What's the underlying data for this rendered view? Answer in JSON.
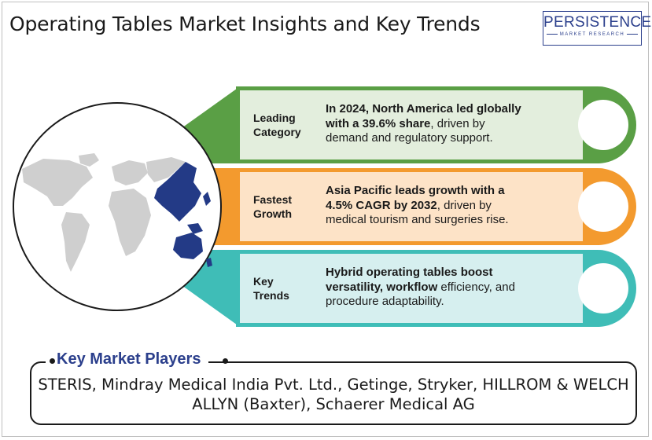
{
  "header": {
    "title": "Operating Tables Market Insights and Key Trends",
    "logo_main": "PERSISTENCE",
    "logo_sub": "MARKET RESEARCH"
  },
  "cards": [
    {
      "label_line1": "Leading",
      "label_line2": "Category",
      "color": "#5a9f45",
      "light": "#e3eedd",
      "text_bold1": "In 2024, North America led globally",
      "text_bold2": "with a 39.6% share",
      "text_rest2": ", driven by",
      "text_line3": "demand and regulatory support."
    },
    {
      "label_line1": "Fastest",
      "label_line2": "Growth",
      "color": "#f39a2e",
      "light": "#fde3c7",
      "text_bold1": "Asia Pacific leads growth with a",
      "text_bold2": "4.5% CAGR by 2032",
      "text_rest2": ", driven by",
      "text_line3": "medical tourism and surgeries rise."
    },
    {
      "label_line1": "Key",
      "label_line2": "Trends",
      "color": "#3fbdb7",
      "light": "#d6efef",
      "text_bold1": "Hybrid operating tables boost",
      "text_bold2": "versatility, workflow",
      "text_rest2": " efficiency, and",
      "text_line3": "procedure adaptability."
    }
  ],
  "players": {
    "title": "Key Market Players",
    "text": "STERIS, Mindray Medical India Pvt. Ltd., Getinge, Stryker, HILLROM & WELCH ALLYN (Baxter), Schaerer Medical AG"
  },
  "colors": {
    "brand": "#2b3f8c",
    "map_highlight": "#233a86",
    "map_land": "#cfcfcf"
  },
  "icons": [
    "world-map-icon"
  ]
}
